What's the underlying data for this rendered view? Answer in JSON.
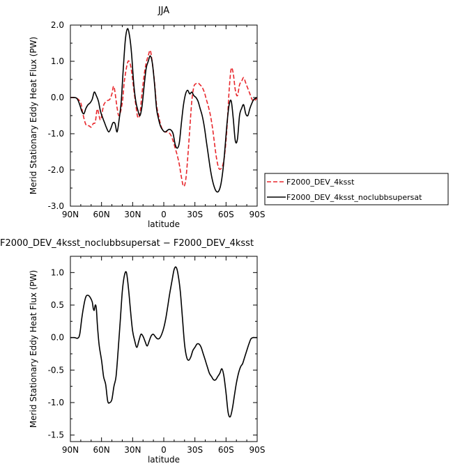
{
  "chart_data": [
    {
      "type": "line",
      "title": "JJA",
      "xlabel": "latitude",
      "ylabel": "Merid Stationary Eddy Heat Flux (PW)",
      "xlim": [
        90,
        -90
      ],
      "ylim": [
        -3.0,
        2.0
      ],
      "x_ticks": [
        90,
        60,
        30,
        0,
        -30,
        -60,
        -90
      ],
      "x_tick_labels": [
        "90N",
        "60N",
        "30N",
        "0",
        "30S",
        "60S",
        "90S"
      ],
      "y_ticks": [
        -3.0,
        -2.0,
        -1.0,
        0.0,
        1.0,
        2.0
      ],
      "y_tick_labels": [
        "-3.0",
        "-2.0",
        "-1.0",
        "0.0",
        "1.0",
        "2.0"
      ],
      "grid": false,
      "legend_position": "right",
      "series": [
        {
          "name": "F2000_DEV_4ksst",
          "color": "#e8262b",
          "dash": "dashed",
          "x": [
            90,
            84,
            80,
            78,
            75,
            72,
            70,
            68,
            66,
            64,
            61,
            58,
            55,
            52,
            50,
            48,
            45,
            43,
            40,
            38,
            35,
            33,
            31,
            29,
            27,
            25,
            23,
            21,
            19,
            17,
            15,
            13,
            11,
            9,
            7,
            5,
            3,
            1,
            -1,
            -3,
            -5,
            -7,
            -9,
            -11,
            -13,
            -15,
            -17,
            -19,
            -21,
            -23,
            -25,
            -27,
            -29,
            -31,
            -33,
            -35,
            -37,
            -39,
            -41,
            -43,
            -45,
            -47,
            -49,
            -51,
            -53,
            -55,
            -57,
            -59,
            -61,
            -63,
            -65,
            -67,
            -69,
            -71,
            -73,
            -75,
            -77,
            -79,
            -81,
            -83,
            -85,
            -87,
            -90
          ],
          "y": [
            0.0,
            -0.02,
            -0.15,
            -0.45,
            -0.75,
            -0.78,
            -0.82,
            -0.72,
            -0.68,
            -0.32,
            -0.62,
            -0.22,
            -0.1,
            -0.05,
            0.1,
            0.3,
            -0.28,
            -0.5,
            -0.15,
            0.45,
            0.95,
            0.98,
            0.72,
            0.25,
            -0.2,
            -0.55,
            -0.45,
            0.1,
            0.6,
            0.95,
            1.15,
            1.3,
            0.95,
            0.45,
            -0.2,
            -0.5,
            -0.75,
            -0.9,
            -0.95,
            -0.95,
            -0.97,
            -1.05,
            -1.2,
            -1.4,
            -1.6,
            -1.85,
            -2.2,
            -2.45,
            -2.3,
            -1.7,
            -0.9,
            -0.1,
            0.3,
            0.38,
            0.4,
            0.35,
            0.28,
            0.15,
            -0.05,
            -0.25,
            -0.5,
            -0.85,
            -1.3,
            -1.7,
            -1.95,
            -1.97,
            -1.85,
            -1.5,
            -0.8,
            0.2,
            0.8,
            0.65,
            0.2,
            0.05,
            0.35,
            0.45,
            0.55,
            0.4,
            0.25,
            0.1,
            -0.05,
            -0.1,
            0.0
          ]
        },
        {
          "name": "F2000_DEV_4ksst_noclubbsupersat",
          "color": "#000000",
          "dash": "solid",
          "x": [
            90,
            84,
            81,
            79,
            77,
            75,
            73,
            71,
            69,
            67,
            65,
            63,
            61,
            59,
            57,
            55,
            53,
            51,
            49,
            47,
            45,
            43,
            41,
            39,
            37,
            35,
            33,
            31,
            29,
            27,
            25,
            23,
            21,
            19,
            17,
            15,
            13,
            11,
            9,
            7,
            5,
            3,
            1,
            -1,
            -3,
            -5,
            -7,
            -9,
            -11,
            -13,
            -15,
            -17,
            -19,
            -21,
            -23,
            -25,
            -27,
            -29,
            -31,
            -33,
            -35,
            -37,
            -39,
            -41,
            -43,
            -45,
            -47,
            -49,
            -51,
            -53,
            -55,
            -57,
            -59,
            -61,
            -63,
            -65,
            -67,
            -69,
            -71,
            -73,
            -75,
            -77,
            -79,
            -81,
            -83,
            -85,
            -87,
            -90
          ],
          "y": [
            0.0,
            -0.02,
            -0.2,
            -0.38,
            -0.45,
            -0.3,
            -0.2,
            -0.15,
            -0.05,
            0.15,
            0.05,
            -0.1,
            -0.38,
            -0.55,
            -0.7,
            -0.85,
            -0.95,
            -0.85,
            -0.7,
            -0.72,
            -0.95,
            -0.6,
            -0.1,
            0.8,
            1.6,
            1.9,
            1.7,
            1.2,
            0.4,
            -0.1,
            -0.35,
            -0.5,
            -0.25,
            0.3,
            0.8,
            1.0,
            1.15,
            0.95,
            0.4,
            -0.3,
            -0.6,
            -0.8,
            -0.9,
            -0.95,
            -0.92,
            -0.88,
            -0.9,
            -1.0,
            -1.3,
            -1.4,
            -1.25,
            -0.7,
            -0.2,
            0.1,
            0.2,
            0.1,
            0.15,
            0.05,
            0.0,
            -0.1,
            -0.3,
            -0.5,
            -0.8,
            -1.2,
            -1.6,
            -2.0,
            -2.3,
            -2.5,
            -2.6,
            -2.58,
            -2.4,
            -2.0,
            -1.4,
            -0.7,
            -0.2,
            -0.1,
            -0.6,
            -1.2,
            -1.15,
            -0.5,
            -0.3,
            -0.2,
            -0.45,
            -0.5,
            -0.3,
            -0.15,
            -0.05,
            0.0
          ]
        }
      ]
    },
    {
      "type": "line",
      "title": "F2000_DEV_4ksst_noclubbsupersat − F2000_DEV_4ksst",
      "xlabel": "latitude",
      "ylabel": "Merid Stationary Eddy Heat Flux (PW)",
      "xlim": [
        90,
        -90
      ],
      "ylim": [
        -1.6,
        1.25
      ],
      "x_ticks": [
        90,
        60,
        30,
        0,
        -30,
        -60,
        -90
      ],
      "x_tick_labels": [
        "90N",
        "60N",
        "30N",
        "0",
        "30S",
        "60S",
        "90S"
      ],
      "y_ticks": [
        -1.5,
        -1.0,
        -0.5,
        0.0,
        0.5,
        1.0
      ],
      "y_tick_labels": [
        "-1.5",
        "-1.0",
        "-0.5",
        "0.0",
        "0.5",
        "1.0"
      ],
      "grid": false,
      "series": [
        {
          "color": "#000000",
          "dash": "solid",
          "x": [
            90,
            86,
            83,
            81,
            79,
            77,
            75,
            73,
            71,
            69,
            68,
            67,
            66,
            65,
            64,
            63,
            62,
            60,
            58,
            56,
            54,
            52,
            50,
            48,
            46,
            44,
            42,
            40,
            38,
            36,
            34,
            32,
            30,
            28,
            26,
            24,
            22,
            20,
            18,
            16,
            14,
            12,
            10,
            8,
            6,
            4,
            2,
            0,
            -2,
            -4,
            -6,
            -8,
            -10,
            -12,
            -14,
            -16,
            -18,
            -20,
            -22,
            -24,
            -26,
            -28,
            -30,
            -32,
            -34,
            -36,
            -38,
            -40,
            -42,
            -44,
            -46,
            -48,
            -50,
            -52,
            -54,
            -56,
            -58,
            -60,
            -62,
            -64,
            -66,
            -68,
            -70,
            -72,
            -74,
            -76,
            -78,
            -80,
            -82,
            -84,
            -86,
            -88,
            -90
          ],
          "y": [
            0.0,
            0.0,
            -0.01,
            0.05,
            0.3,
            0.5,
            0.63,
            0.65,
            0.62,
            0.55,
            0.45,
            0.42,
            0.5,
            0.45,
            0.2,
            0.0,
            -0.15,
            -0.35,
            -0.6,
            -0.72,
            -0.98,
            -1.0,
            -0.95,
            -0.75,
            -0.6,
            -0.2,
            0.25,
            0.7,
            0.95,
            1.0,
            0.75,
            0.4,
            0.1,
            -0.05,
            -0.15,
            -0.05,
            0.05,
            0.02,
            -0.06,
            -0.13,
            -0.05,
            0.03,
            0.05,
            0.01,
            -0.02,
            -0.01,
            0.05,
            0.15,
            0.3,
            0.5,
            0.7,
            0.88,
            1.05,
            1.08,
            0.95,
            0.7,
            0.3,
            -0.1,
            -0.3,
            -0.35,
            -0.3,
            -0.2,
            -0.15,
            -0.1,
            -0.1,
            -0.15,
            -0.25,
            -0.35,
            -0.45,
            -0.55,
            -0.6,
            -0.65,
            -0.65,
            -0.6,
            -0.55,
            -0.48,
            -0.6,
            -0.85,
            -1.15,
            -1.22,
            -1.1,
            -0.9,
            -0.7,
            -0.55,
            -0.45,
            -0.4,
            -0.3,
            -0.2,
            -0.1,
            -0.02,
            0.0,
            0.0,
            0.0
          ]
        }
      ]
    }
  ]
}
